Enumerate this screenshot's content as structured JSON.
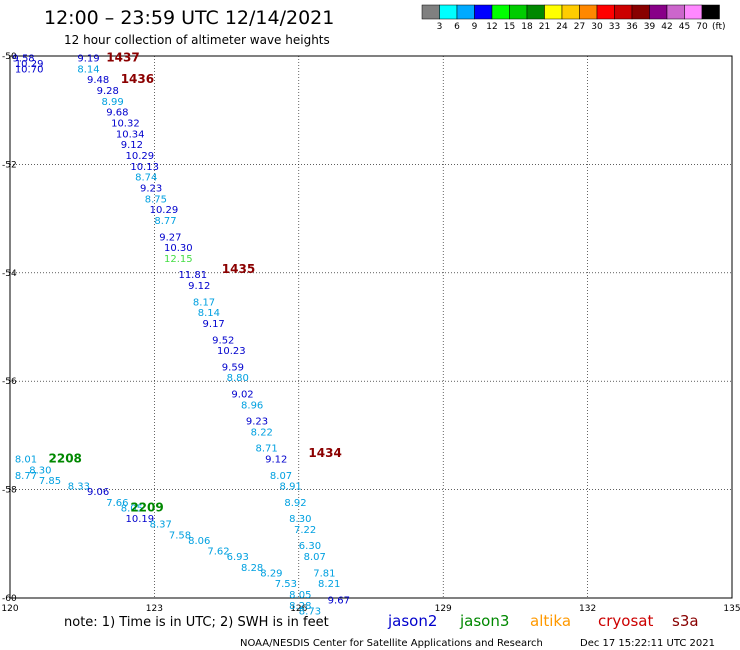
{
  "header": {
    "title": "12:00 – 23:59 UTC 12/14/2021",
    "subtitle": "12 hour collection of altimeter wave heights"
  },
  "legend": {
    "unit": "(ft)",
    "colors": [
      "#808080",
      "#00ffff",
      "#00aaff",
      "#0000ff",
      "#00ff00",
      "#00cc00",
      "#008800",
      "#ffff00",
      "#ffcc00",
      "#ff8800",
      "#ff0000",
      "#cc0000",
      "#880000",
      "#880088",
      "#cc66cc",
      "#ff88ff",
      "#000000"
    ],
    "labels": [
      "3",
      "6",
      "9",
      "12",
      "15",
      "18",
      "21",
      "24",
      "27",
      "30",
      "33",
      "36",
      "39",
      "42",
      "45",
      "70"
    ]
  },
  "map": {
    "lon_ticks": [
      120,
      123,
      126,
      129,
      132,
      135
    ],
    "lat_ticks": [
      -50,
      -52,
      -54,
      -56,
      -58,
      -60
    ],
    "lon_range": [
      120,
      135
    ],
    "lat_range": [
      -50,
      -60
    ]
  },
  "tracks": [
    {
      "satellite": "cryosat",
      "color": "#8b0000",
      "time_labels": [
        {
          "text": "1437",
          "lon": 122.0,
          "lat": -50.1
        },
        {
          "text": "1436",
          "lon": 122.3,
          "lat": -50.5
        },
        {
          "text": "1435",
          "lon": 124.4,
          "lat": -54.0
        },
        {
          "text": "1434",
          "lon": 126.2,
          "lat": -57.4
        }
      ],
      "points": [
        {
          "v": "9.58",
          "lon": 120.05,
          "lat": -50.1,
          "c": "#0000cd"
        },
        {
          "v": "10.29",
          "lon": 120.1,
          "lat": -50.2,
          "c": "#0000cd"
        },
        {
          "v": "10.70",
          "lon": 120.1,
          "lat": -50.3,
          "c": "#0000cd"
        },
        {
          "v": "9.19",
          "lon": 121.4,
          "lat": -50.1,
          "c": "#0000cd"
        },
        {
          "v": "8.14",
          "lon": 121.4,
          "lat": -50.3,
          "c": "#00a0e0"
        },
        {
          "v": "9.48",
          "lon": 121.6,
          "lat": -50.5,
          "c": "#0000cd"
        },
        {
          "v": "9.28",
          "lon": 121.8,
          "lat": -50.7,
          "c": "#0000cd"
        },
        {
          "v": "8.99",
          "lon": 121.9,
          "lat": -50.9,
          "c": "#00a0e0"
        },
        {
          "v": "9.68",
          "lon": 122.0,
          "lat": -51.1,
          "c": "#0000cd"
        },
        {
          "v": "10.32",
          "lon": 122.1,
          "lat": -51.3,
          "c": "#0000cd"
        },
        {
          "v": "10.34",
          "lon": 122.2,
          "lat": -51.5,
          "c": "#0000cd"
        },
        {
          "v": "9.12",
          "lon": 122.3,
          "lat": -51.7,
          "c": "#0000cd"
        },
        {
          "v": "10.29",
          "lon": 122.4,
          "lat": -51.9,
          "c": "#0000cd"
        },
        {
          "v": "10.13",
          "lon": 122.5,
          "lat": -52.1,
          "c": "#0000cd"
        },
        {
          "v": "8.74",
          "lon": 122.6,
          "lat": -52.3,
          "c": "#00a0e0"
        },
        {
          "v": "9.23",
          "lon": 122.7,
          "lat": -52.5,
          "c": "#0000cd"
        },
        {
          "v": "8.75",
          "lon": 122.8,
          "lat": -52.7,
          "c": "#00a0e0"
        },
        {
          "v": "10.29",
          "lon": 122.9,
          "lat": -52.9,
          "c": "#0000cd"
        },
        {
          "v": "8.77",
          "lon": 123.0,
          "lat": -53.1,
          "c": "#00a0e0"
        },
        {
          "v": "9.27",
          "lon": 123.1,
          "lat": -53.4,
          "c": "#0000cd"
        },
        {
          "v": "10.30",
          "lon": 123.2,
          "lat": -53.6,
          "c": "#0000cd"
        },
        {
          "v": "12.15",
          "lon": 123.2,
          "lat": -53.8,
          "c": "#44dd44"
        },
        {
          "v": "11.81",
          "lon": 123.5,
          "lat": -54.1,
          "c": "#0000cd"
        },
        {
          "v": "9.12",
          "lon": 123.7,
          "lat": -54.3,
          "c": "#0000cd"
        },
        {
          "v": "8.17",
          "lon": 123.8,
          "lat": -54.6,
          "c": "#00a0e0"
        },
        {
          "v": "8.14",
          "lon": 123.9,
          "lat": -54.8,
          "c": "#00a0e0"
        },
        {
          "v": "9.17",
          "lon": 124.0,
          "lat": -55.0,
          "c": "#0000cd"
        },
        {
          "v": "9.52",
          "lon": 124.2,
          "lat": -55.3,
          "c": "#0000cd"
        },
        {
          "v": "10.23",
          "lon": 124.3,
          "lat": -55.5,
          "c": "#0000cd"
        },
        {
          "v": "9.59",
          "lon": 124.4,
          "lat": -55.8,
          "c": "#0000cd"
        },
        {
          "v": "8.80",
          "lon": 124.5,
          "lat": -56.0,
          "c": "#00a0e0"
        },
        {
          "v": "9.02",
          "lon": 124.6,
          "lat": -56.3,
          "c": "#0000cd"
        },
        {
          "v": "8.96",
          "lon": 124.8,
          "lat": -56.5,
          "c": "#00a0e0"
        },
        {
          "v": "9.23",
          "lon": 124.9,
          "lat": -56.8,
          "c": "#0000cd"
        },
        {
          "v": "8.22",
          "lon": 125.0,
          "lat": -57.0,
          "c": "#00a0e0"
        },
        {
          "v": "8.71",
          "lon": 125.1,
          "lat": -57.3,
          "c": "#00a0e0"
        },
        {
          "v": "9.12",
          "lon": 125.3,
          "lat": -57.5,
          "c": "#0000cd"
        },
        {
          "v": "8.07",
          "lon": 125.4,
          "lat": -57.8,
          "c": "#00a0e0"
        },
        {
          "v": "8.91",
          "lon": 125.6,
          "lat": -58.0,
          "c": "#00a0e0"
        },
        {
          "v": "8.92",
          "lon": 125.7,
          "lat": -58.3,
          "c": "#00a0e0"
        },
        {
          "v": "8.30",
          "lon": 125.8,
          "lat": -58.6,
          "c": "#00a0e0"
        },
        {
          "v": "7.22",
          "lon": 125.9,
          "lat": -58.8,
          "c": "#00a0e0"
        },
        {
          "v": "6.30",
          "lon": 126.0,
          "lat": -59.1,
          "c": "#00a0e0"
        },
        {
          "v": "8.07",
          "lon": 126.1,
          "lat": -59.3,
          "c": "#00a0e0"
        },
        {
          "v": "7.81",
          "lon": 126.3,
          "lat": -59.6,
          "c": "#00a0e0"
        },
        {
          "v": "8.21",
          "lon": 126.4,
          "lat": -59.8,
          "c": "#00a0e0"
        },
        {
          "v": "9.67",
          "lon": 126.6,
          "lat": -60.1,
          "c": "#0000cd"
        },
        {
          "v": "8.28",
          "lon": 125.8,
          "lat": -60.2,
          "c": "#00a0e0"
        },
        {
          "v": "8.73",
          "lon": 126.0,
          "lat": -60.3,
          "c": "#00a0e0"
        }
      ]
    },
    {
      "satellite": "jason3",
      "color": "#008800",
      "time_labels": [
        {
          "text": "2208",
          "lon": 120.8,
          "lat": -57.5
        },
        {
          "text": "2209",
          "lon": 122.5,
          "lat": -58.4
        }
      ],
      "points": [
        {
          "v": "8.01",
          "lon": 120.1,
          "lat": -57.5,
          "c": "#00a0e0"
        },
        {
          "v": "8.30",
          "lon": 120.4,
          "lat": -57.7,
          "c": "#00a0e0"
        },
        {
          "v": "8.77",
          "lon": 120.1,
          "lat": -57.8,
          "c": "#00a0e0"
        },
        {
          "v": "7.85",
          "lon": 120.6,
          "lat": -57.9,
          "c": "#00a0e0"
        },
        {
          "v": "8.33",
          "lon": 121.2,
          "lat": -58.0,
          "c": "#00a0e0"
        },
        {
          "v": "9.06",
          "lon": 121.6,
          "lat": -58.1,
          "c": "#0000cd"
        },
        {
          "v": "7.66",
          "lon": 122.0,
          "lat": -58.3,
          "c": "#00a0e0"
        },
        {
          "v": "8.05",
          "lon": 122.3,
          "lat": -58.4,
          "c": "#00a0e0"
        },
        {
          "v": "10.19",
          "lon": 122.4,
          "lat": -58.6,
          "c": "#0000cd"
        },
        {
          "v": "8.37",
          "lon": 122.9,
          "lat": -58.7,
          "c": "#00a0e0"
        },
        {
          "v": "7.58",
          "lon": 123.3,
          "lat": -58.9,
          "c": "#00a0e0"
        },
        {
          "v": "8.06",
          "lon": 123.7,
          "lat": -59.0,
          "c": "#00a0e0"
        },
        {
          "v": "7.62",
          "lon": 124.1,
          "lat": -59.2,
          "c": "#00a0e0"
        },
        {
          "v": "6.93",
          "lon": 124.5,
          "lat": -59.3,
          "c": "#00a0e0"
        },
        {
          "v": "8.28",
          "lon": 124.8,
          "lat": -59.5,
          "c": "#00a0e0"
        },
        {
          "v": "8.29",
          "lon": 125.2,
          "lat": -59.6,
          "c": "#00a0e0"
        },
        {
          "v": "7.53",
          "lon": 125.5,
          "lat": -59.8,
          "c": "#00a0e0"
        },
        {
          "v": "8.05",
          "lon": 125.8,
          "lat": -60.0,
          "c": "#00a0e0"
        }
      ]
    }
  ],
  "footer": {
    "note": "note: 1) Time is in UTC; 2) SWH is in feet",
    "credit": "NOAA/NESDIS Center for Satellite Applications and Research",
    "timestamp": "Dec 17 15:22:11 UTC 2021",
    "satellites": [
      {
        "name": "jason2",
        "color": "#0000cc"
      },
      {
        "name": "jason3",
        "color": "#008800"
      },
      {
        "name": "altika",
        "color": "#ff9900"
      },
      {
        "name": "cryosat",
        "color": "#cc0000"
      },
      {
        "name": "s3a",
        "color": "#880000"
      }
    ]
  }
}
